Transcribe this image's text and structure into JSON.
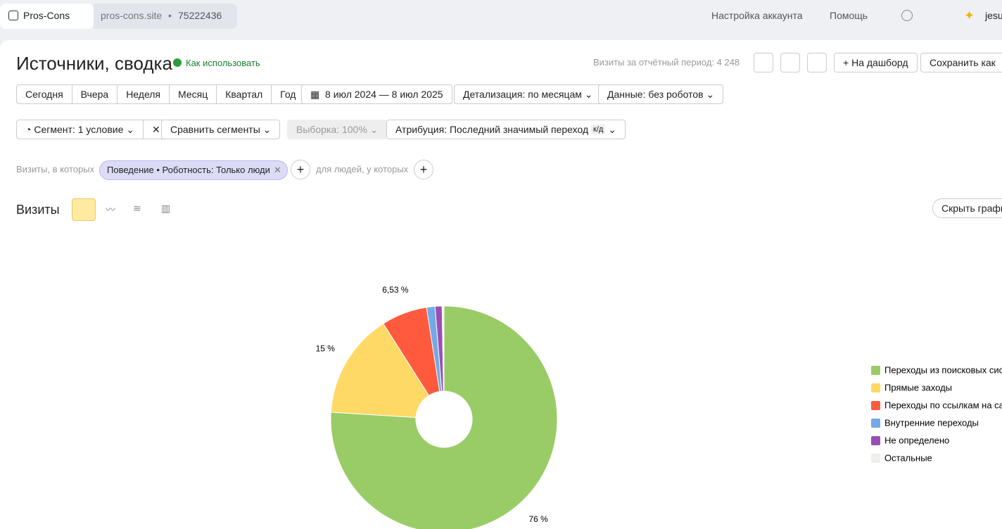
{
  "topbar": {
    "counter": "Pros-Cons",
    "site": "pros-cons.site",
    "site_id": "75222436",
    "links": [
      "Настройка аккаунта",
      "Помощь"
    ],
    "user": "jesu"
  },
  "header": {
    "title": "Источники, сводка",
    "help": "Как использовать",
    "visits_total": "Визиты за отчётный период: 4 248",
    "buttons": [
      "На дашборд",
      "Сохранить как"
    ]
  },
  "periods": [
    "Сегодня",
    "Вчера",
    "Неделя",
    "Месяц",
    "Квартал",
    "Год"
  ],
  "date_range": "8 июл 2024 — 8 июл 2025",
  "detail": "Детализация: по месяцам",
  "data_filter": "Данные: без роботов",
  "segment": "Сегмент: 1 условие",
  "compare": "Сравнить сегменты",
  "sample": "Выборка: 100%",
  "attribution": "Атрибуция: Последний значимый переход",
  "attribution_badge": "к/д",
  "filter": {
    "prefix": "Визиты, в которых",
    "chip": "Поведение • Роботность: Только люди",
    "people": "для людей, у которых"
  },
  "section": {
    "title": "Визиты",
    "hide": "Скрыть график"
  },
  "chart_data": {
    "type": "pie",
    "categories": [
      "Переходы из поисковых систем",
      "Прямые заходы",
      "Переходы по ссылкам на сайтах",
      "Внутренние переходы",
      "Не определено",
      "Остальные"
    ],
    "values": [
      76,
      15,
      6.53,
      1.2,
      1,
      0.27
    ],
    "value_labels": [
      "76 %",
      "15 %",
      "6,53 %",
      null,
      null,
      null
    ],
    "colors": [
      "#99cc66",
      "#ffd966",
      "#ff5a3d",
      "#73a9e6",
      "#9b4fb4",
      "#f0f0ea"
    ]
  }
}
